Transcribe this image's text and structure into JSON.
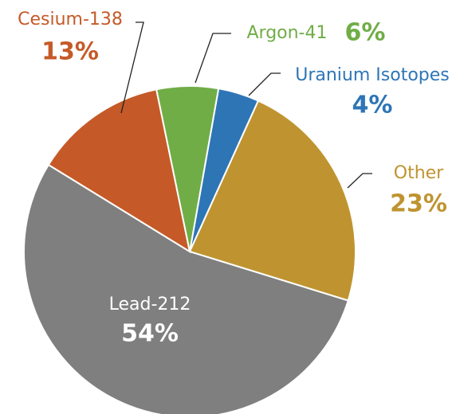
{
  "chart_data": {
    "type": "pie",
    "categories": [
      "Uranium Isotopes",
      "Other",
      "Lead-212",
      "Cesium-138",
      "Argon-41"
    ],
    "values": [
      4,
      23,
      54,
      13,
      6
    ],
    "value_labels": [
      "4%",
      "23%",
      "54%",
      "13%",
      "6%"
    ],
    "colors": [
      "#2e75b6",
      "#bf9430",
      "#7f7f7f",
      "#c55a28",
      "#70ad47"
    ]
  }
}
